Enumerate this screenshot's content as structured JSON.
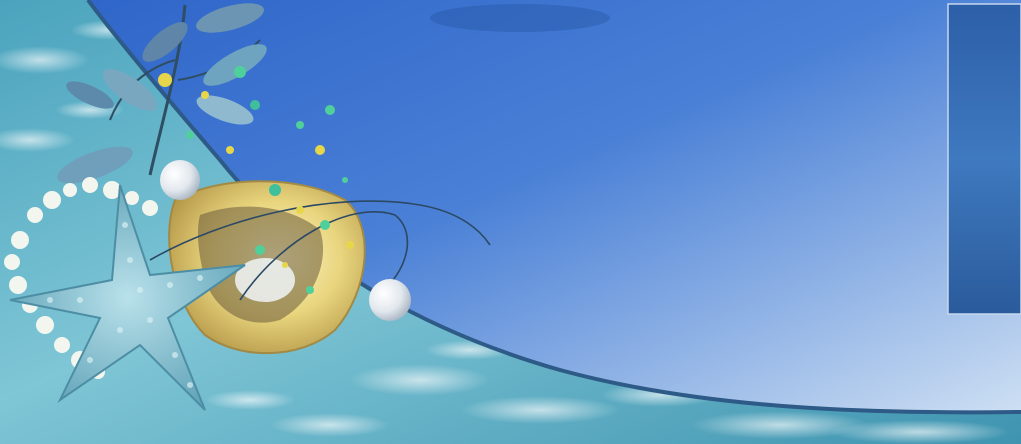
{
  "banner": {
    "palette": {
      "water_light": "#bfe6ef",
      "water_mid": "#5fb3c9",
      "water_deep": "#2f7f9a",
      "panel_top": "#3f74cf",
      "panel_bottom": "#c7dcf4",
      "panel_edge": "#2d5a86",
      "starfish": "#7ab7c9",
      "shell": "#e8d98a",
      "pearl": "#f4f6f8",
      "leaf": "#5f86a8",
      "bubble_green": "#4fd09a",
      "bubble_yellow": "#e7d64a"
    },
    "icons": [
      "starfish",
      "oyster-shell",
      "pearl",
      "leaf-sprig",
      "bubble",
      "water-inset"
    ]
  }
}
